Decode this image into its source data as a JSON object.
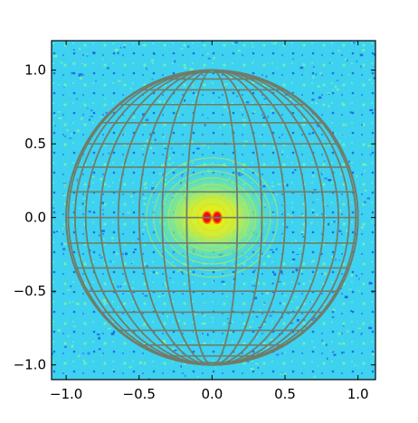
{
  "chart_data": {
    "type": "heatmap",
    "title": "",
    "xlabel": "",
    "ylabel": "",
    "xlim": [
      -1.1,
      1.12
    ],
    "ylim": [
      -1.1,
      1.2
    ],
    "x_ticks": [
      -1.0,
      -0.5,
      0.0,
      0.5,
      1.0
    ],
    "x_tick_labels": [
      "−1.0",
      "−0.5",
      "0.0",
      "0.5",
      "1.0"
    ],
    "y_ticks": [
      -1.0,
      -0.5,
      0.0,
      0.5,
      1.0
    ],
    "y_tick_labels": [
      "−1.0",
      "−0.5",
      "0.0",
      "0.5",
      "1.0"
    ],
    "grid": false,
    "legend": "none",
    "colormap": "jet",
    "background_color": "#3fd1f0",
    "hotspot": {
      "center": [
        0.0,
        0.0
      ],
      "lobes_x": [
        -0.035,
        0.035
      ],
      "peak_color": "#e8101a",
      "halo_color": "#f2f200"
    },
    "sphere_overlay": {
      "center": [
        0.0,
        0.0
      ],
      "radius": 1.0,
      "meridian_angles_deg": [
        0,
        10,
        20,
        30,
        40,
        50,
        60,
        70,
        80,
        90,
        100,
        110,
        120,
        130,
        140,
        150,
        160,
        170
      ],
      "parallel_latitudes_deg": [
        -80,
        -70,
        -60,
        -50,
        -40,
        -30,
        -20,
        -10,
        0,
        10,
        20,
        30,
        40,
        50,
        60,
        70,
        80
      ],
      "line_color": "#6f7d6a"
    }
  }
}
